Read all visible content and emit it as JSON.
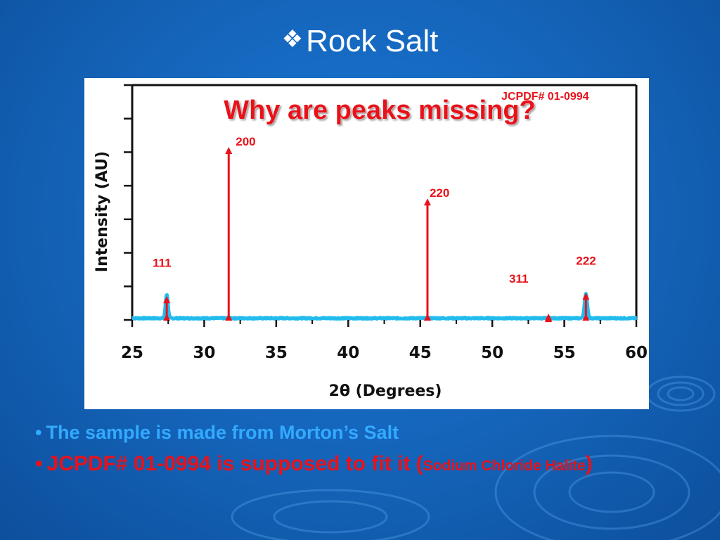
{
  "slide": {
    "title_symbol": "❖",
    "title": "Rock Salt",
    "bullets": [
      {
        "text": "The sample is made from Morton’s Salt",
        "color": "#33aaff"
      },
      {
        "text_main": "JCPDF# 01-0994 is supposed to fit it (",
        "text_small": "Sodium Chloride Halite",
        "text_end": ")",
        "color": "#e8121a"
      }
    ],
    "bullet_symbol": "•"
  },
  "chart_data": {
    "type": "line",
    "title": "Why are peaks missing?",
    "xlabel": "2θ (Degrees)",
    "ylabel": "Intensity (AU)",
    "xlim": [
      25,
      60
    ],
    "ylim": [
      0,
      100
    ],
    "x_ticks": [
      25,
      30,
      35,
      40,
      45,
      50,
      55,
      60
    ],
    "reference_label": "JCPDF# 01-0994",
    "reference_color": "#e8121a",
    "series_color": "#22bbee",
    "measured": {
      "baseline": 1,
      "peaks": [
        {
          "x": 27.4,
          "height": 14,
          "width": 0.12
        },
        {
          "x": 56.5,
          "height": 14,
          "width": 0.14
        }
      ]
    },
    "reference_peaks": [
      {
        "x": 27.4,
        "intensity": 13,
        "label": "111"
      },
      {
        "x": 31.7,
        "intensity": 100,
        "label": "200"
      },
      {
        "x": 45.5,
        "intensity": 70,
        "label": "220"
      },
      {
        "x": 53.9,
        "intensity": 2,
        "label": "311"
      },
      {
        "x": 56.5,
        "intensity": 15,
        "label": "222"
      }
    ]
  }
}
